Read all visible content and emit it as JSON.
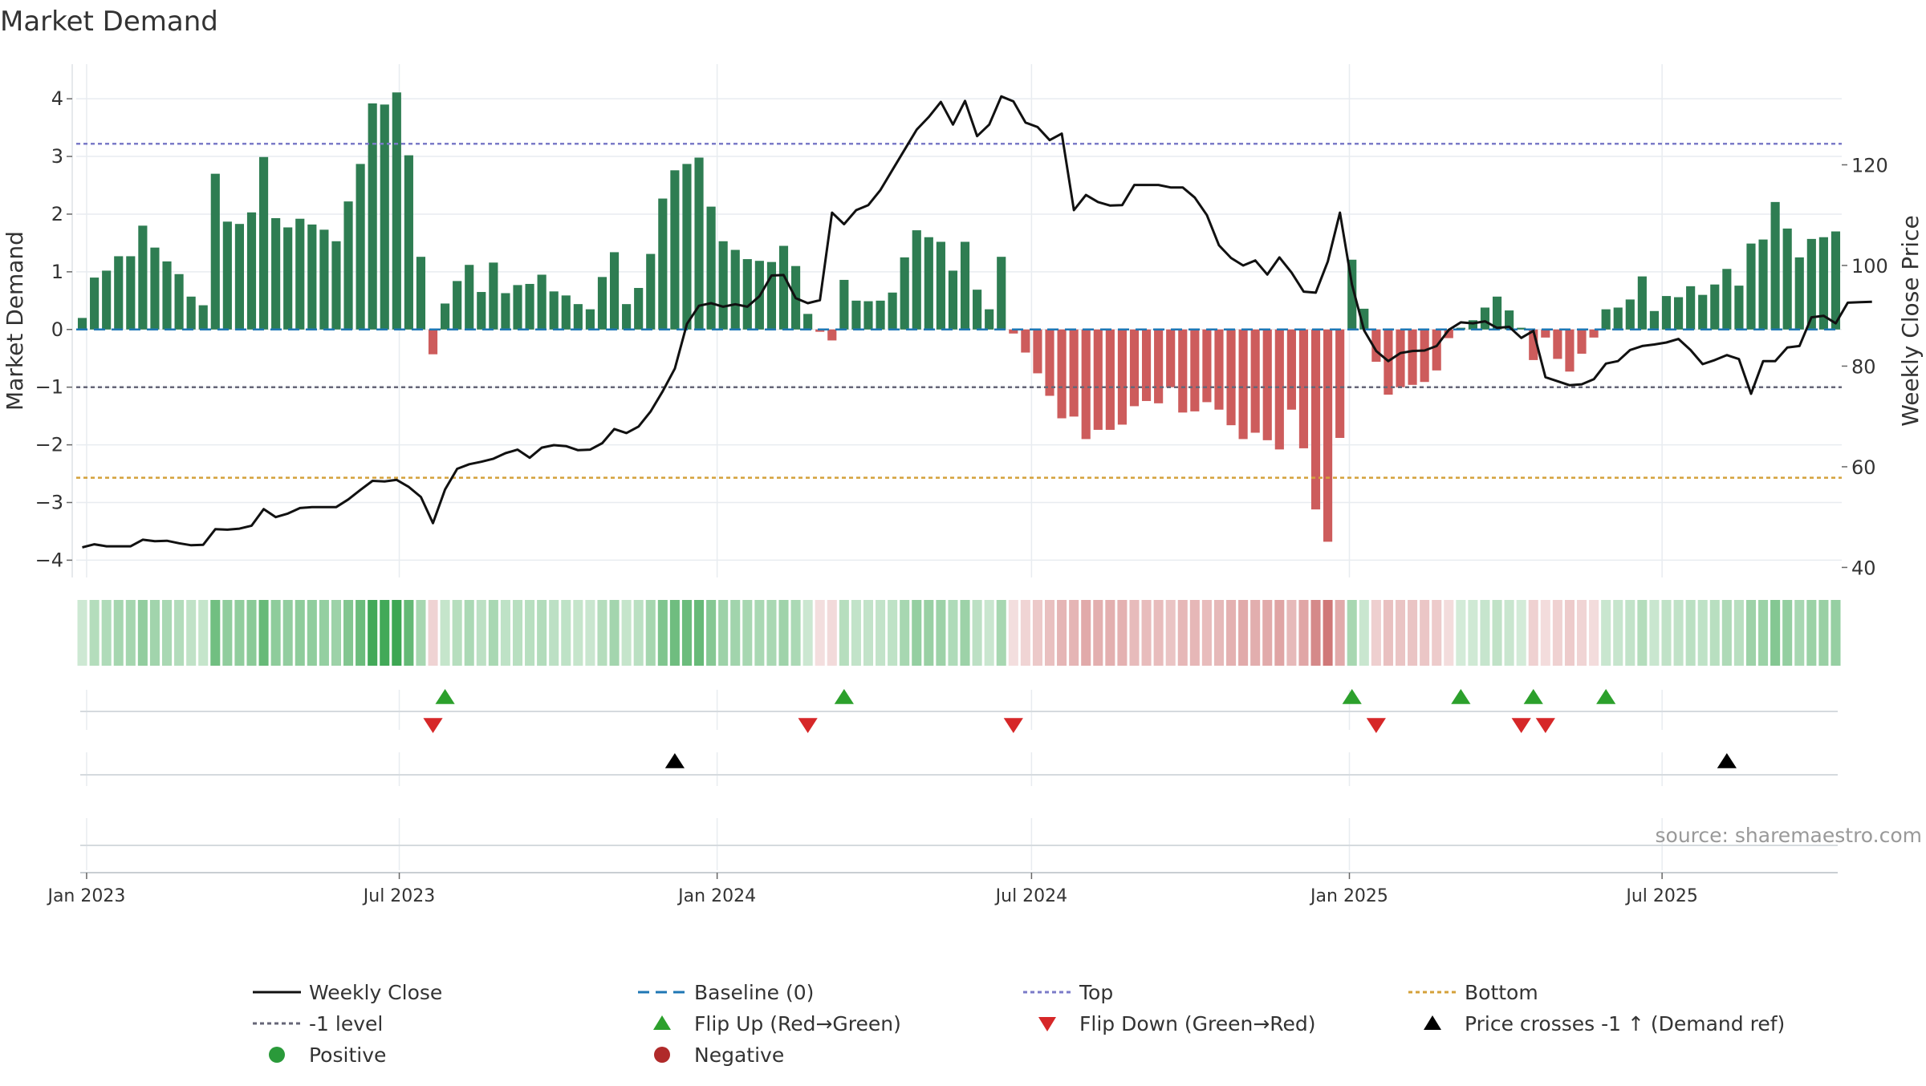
{
  "chart_data": {
    "type": "bar",
    "title": "Market Demand",
    "ylabel": "Market Demand",
    "y2label": "Weekly Close Price",
    "ylim": [
      -4.3,
      4.6
    ],
    "y2lim": [
      38,
      140
    ],
    "yticks": [
      4,
      3,
      2,
      1,
      0,
      -1,
      -2,
      -3,
      -4
    ],
    "y2ticks": [
      120,
      100,
      80,
      60,
      40
    ],
    "x_start": "2022-12-26",
    "x_end": "2025-10-06",
    "week_count": 142,
    "x_ticks": [
      {
        "label": "Jan 2023",
        "date": "2023-01-01"
      },
      {
        "label": "Jul 2023",
        "date": "2023-07-01"
      },
      {
        "label": "Jan 2024",
        "date": "2024-01-01"
      },
      {
        "label": "Jul 2024",
        "date": "2024-07-01"
      },
      {
        "label": "Jan 2025",
        "date": "2025-01-01"
      },
      {
        "label": "Jul 2025",
        "date": "2025-07-01"
      }
    ],
    "reference_lines": {
      "top": 3.22,
      "minus_one": -1.0,
      "bottom": -2.57,
      "baseline": 0
    },
    "demand_values": [
      0.2,
      0.9,
      1.02,
      1.27,
      1.27,
      1.8,
      1.42,
      1.18,
      0.96,
      0.57,
      0.42,
      2.7,
      1.87,
      1.83,
      2.03,
      2.99,
      1.93,
      1.77,
      1.92,
      1.82,
      1.73,
      1.53,
      2.22,
      2.87,
      3.92,
      3.9,
      4.11,
      3.02,
      1.26,
      -0.43,
      0.45,
      0.84,
      1.12,
      0.65,
      1.16,
      0.63,
      0.77,
      0.79,
      0.95,
      0.66,
      0.59,
      0.44,
      0.35,
      0.91,
      1.34,
      0.44,
      0.72,
      1.31,
      2.27,
      2.76,
      2.87,
      2.98,
      2.13,
      1.53,
      1.38,
      1.22,
      1.19,
      1.17,
      1.45,
      1.1,
      0.27,
      -0.04,
      -0.19,
      0.86,
      0.5,
      0.49,
      0.5,
      0.64,
      1.25,
      1.72,
      1.6,
      1.52,
      1.02,
      1.52,
      0.69,
      0.35,
      1.26,
      -0.07,
      -0.4,
      -0.76,
      -1.15,
      -1.54,
      -1.51,
      -1.9,
      -1.74,
      -1.74,
      -1.65,
      -1.33,
      -1.24,
      -1.28,
      -1.0,
      -1.44,
      -1.42,
      -1.26,
      -1.39,
      -1.66,
      -1.9,
      -1.79,
      -1.92,
      -2.08,
      -1.39,
      -2.06,
      -3.12,
      -3.68,
      -1.88,
      1.21,
      0.36,
      -0.56,
      -1.13,
      -1.0,
      -0.96,
      -0.91,
      -0.71,
      -0.15,
      0.03,
      0.16,
      0.38,
      0.57,
      0.33,
      0.03,
      -0.53,
      -0.14,
      -0.51,
      -0.73,
      -0.42,
      -0.14,
      0.35,
      0.38,
      0.52,
      0.92,
      0.32,
      0.58,
      0.56,
      0.75,
      0.6,
      0.78,
      1.05,
      0.76,
      1.49,
      1.56,
      2.21,
      1.75,
      1.25,
      1.57,
      1.6,
      1.7
    ],
    "close_values": [
      44,
      44.6,
      44.2,
      44.2,
      44.2,
      45.5,
      45.2,
      45.3,
      44.8,
      44.4,
      44.5,
      47.6,
      47.5,
      47.7,
      48.3,
      51.6,
      50,
      50.7,
      51.8,
      52,
      52,
      52,
      53.5,
      55.4,
      57.2,
      57.1,
      57.4,
      56,
      54,
      48.8,
      55.5,
      59.6,
      60.5,
      61,
      61.6,
      62.7,
      63.4,
      61.8,
      63.8,
      64.3,
      64.1,
      63.3,
      63.4,
      64.7,
      67.5,
      66.7,
      68,
      71,
      75,
      79.5,
      88.4,
      92,
      92.5,
      91.8,
      92.3,
      91.8,
      93.9,
      98,
      98.1,
      93.5,
      92.5,
      93.1,
      110.5,
      108.2,
      111,
      112,
      115,
      119,
      123,
      127,
      129.5,
      132.5,
      128,
      132.7,
      125.7,
      128,
      133.6,
      132.6,
      128.4,
      127.5,
      124.9,
      126.2,
      111,
      114,
      112.6,
      111.9,
      112,
      116,
      116,
      116,
      115.5,
      115.5,
      113.5,
      110,
      104,
      101.5,
      100,
      101,
      98.2,
      101.6,
      98.6,
      94.8,
      94.6,
      100.8,
      110.5,
      96.2,
      87.1,
      83,
      81,
      82.6,
      83,
      83.1,
      84,
      87.2,
      88.7,
      88.5,
      88.9,
      87.6,
      87.8,
      85.6,
      87,
      77.8,
      77,
      76.2,
      76.4,
      77.4,
      80.5,
      81,
      83.2,
      84,
      84.3,
      84.7,
      85.4,
      83.2,
      80.4,
      81.2,
      82.2,
      81.4,
      74.5,
      81,
      81,
      83.7,
      84,
      89.7,
      90,
      88.5,
      92.6,
      92.7,
      92.8
    ],
    "flip_up_weeks": [
      30,
      63,
      105,
      114,
      120,
      126
    ],
    "flip_down_weeks": [
      29,
      60,
      77,
      107,
      119,
      121
    ],
    "price_cross_weeks": [
      49,
      136
    ],
    "legend": [
      {
        "label": "Weekly Close",
        "marker": "solid-line",
        "color": "#111111"
      },
      {
        "label": "Baseline (0)",
        "marker": "dashed-line",
        "color": "#1f77b4"
      },
      {
        "label": "Top",
        "marker": "dotted-line",
        "color": "#7b7bc8"
      },
      {
        "label": "Bottom",
        "marker": "dotted-line",
        "color": "#d4a13a"
      },
      {
        "label": "-1 level",
        "marker": "dotted-line",
        "color": "#666677"
      },
      {
        "label": "Flip Up (Red→Green)",
        "marker": "triangle-up",
        "color": "#2ca02c"
      },
      {
        "label": "Flip Down (Green→Red)",
        "marker": "triangle-down",
        "color": "#d62728"
      },
      {
        "label": "Price crosses -1 ↑ (Demand ref)",
        "marker": "triangle-up",
        "color": "#000000"
      },
      {
        "label": "Positive",
        "marker": "circle",
        "color": "#2a9a3a"
      },
      {
        "label": "Negative",
        "marker": "circle",
        "color": "#b02a2a"
      }
    ],
    "source": "source: sharemaestro.com",
    "colors": {
      "positive_bar": "#2e7d52",
      "negative_bar": "#cd5c5c",
      "close_line": "#111111",
      "baseline": "#1f77b4",
      "top_line": "#7b7bc8",
      "bottom_line": "#d4a13a",
      "minus_one_line": "#666677",
      "flip_up": "#2ca02c",
      "flip_down": "#d62728",
      "price_cross": "#000000"
    }
  }
}
